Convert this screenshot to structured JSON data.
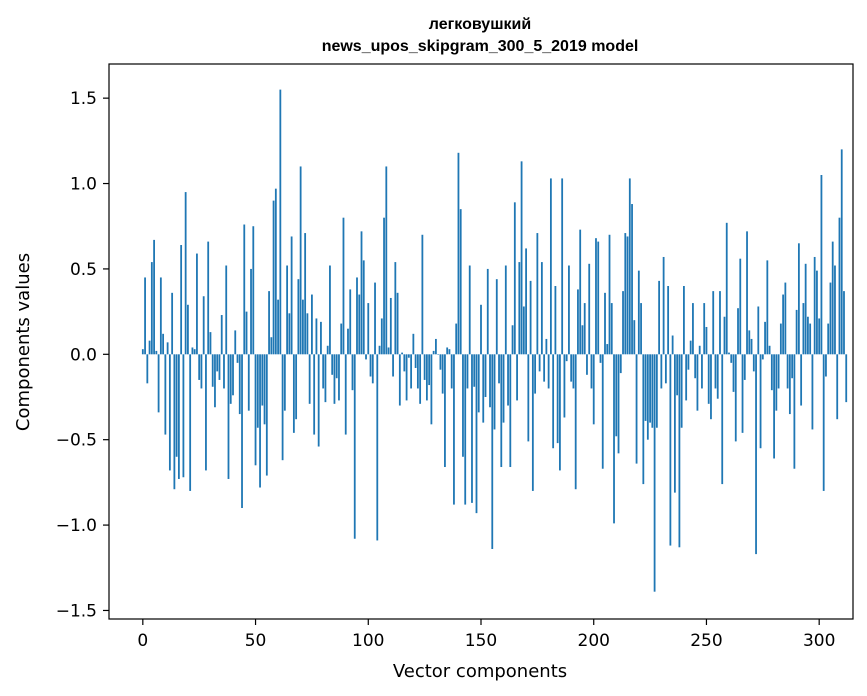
{
  "chart_data": {
    "type": "bar",
    "title_line1": "легковушкий",
    "title_line2": "news_upos_skipgram_300_5_2019 model",
    "xlabel": "Vector components",
    "ylabel": "Components values",
    "xlim": [
      -15,
      315
    ],
    "ylim": [
      -1.55,
      1.7
    ],
    "xticks": [
      0,
      50,
      100,
      150,
      200,
      250,
      300
    ],
    "yticks": [
      -1.5,
      -1.0,
      -0.5,
      0.0,
      0.5,
      1.0,
      1.5
    ],
    "xtick_labels": [
      "0",
      "50",
      "100",
      "150",
      "200",
      "250",
      "300"
    ],
    "ytick_labels": [
      "−1.5",
      "−1.0",
      "−0.5",
      "0.0",
      "0.5",
      "1.0",
      "1.5"
    ],
    "bar_color": "#1f77b4",
    "grid": false,
    "values": [
      0.03,
      0.45,
      -0.17,
      0.08,
      0.54,
      0.67,
      0.02,
      -0.34,
      0.45,
      0.12,
      -0.47,
      0.07,
      -0.68,
      0.36,
      -0.79,
      -0.6,
      -0.73,
      0.64,
      -0.72,
      0.95,
      0.29,
      -0.8,
      0.04,
      0.03,
      0.59,
      -0.15,
      -0.2,
      0.34,
      -0.68,
      0.66,
      0.13,
      -0.19,
      -0.31,
      -0.1,
      -0.15,
      0.23,
      -0.2,
      0.52,
      -0.73,
      -0.29,
      -0.24,
      0.14,
      -0.05,
      -0.35,
      -0.9,
      0.76,
      0.25,
      -0.33,
      0.5,
      0.75,
      -0.65,
      -0.43,
      -0.78,
      -0.3,
      -0.41,
      -0.71,
      0.37,
      0.1,
      0.9,
      0.97,
      0.32,
      1.55,
      -0.62,
      -0.33,
      0.52,
      0.24,
      0.69,
      -0.46,
      -0.38,
      0.44,
      1.1,
      0.32,
      0.71,
      0.24,
      -0.29,
      0.35,
      -0.47,
      0.21,
      -0.54,
      0.19,
      -0.2,
      -0.28,
      0.05,
      0.52,
      -0.12,
      -0.29,
      -0.14,
      -0.27,
      0.18,
      0.8,
      -0.47,
      0.15,
      0.38,
      -0.21,
      -1.08,
      0.45,
      0.35,
      0.72,
      0.55,
      -0.03,
      0.3,
      -0.13,
      -0.17,
      0.42,
      -1.09,
      0.05,
      0.21,
      0.8,
      1.1,
      0.04,
      0.33,
      -0.13,
      0.54,
      0.36,
      -0.3,
      0.01,
      -0.1,
      -0.27,
      -0.02,
      -0.2,
      0.12,
      -0.08,
      -0.2,
      -0.29,
      0.7,
      -0.15,
      -0.27,
      -0.18,
      -0.41,
      0.02,
      0.09,
      0.0,
      -0.09,
      -0.23,
      -0.66,
      0.04,
      0.03,
      -0.2,
      -0.88,
      0.18,
      1.18,
      0.85,
      -0.6,
      -0.88,
      -0.2,
      0.52,
      -0.87,
      -0.19,
      -0.93,
      -0.34,
      0.29,
      -0.4,
      -0.25,
      0.5,
      -0.31,
      -1.14,
      -0.44,
      0.44,
      -0.17,
      -0.66,
      -0.4,
      0.52,
      -0.3,
      -0.66,
      0.17,
      0.89,
      -0.27,
      0.54,
      1.13,
      0.28,
      0.62,
      -0.51,
      0.43,
      -0.8,
      -0.23,
      0.71,
      -0.1,
      0.54,
      -0.16,
      0.09,
      -0.2,
      1.03,
      -0.55,
      0.4,
      -0.52,
      -0.68,
      1.03,
      -0.37,
      -0.04,
      0.52,
      -0.16,
      -0.2,
      -0.79,
      0.38,
      0.73,
      0.17,
      0.3,
      -0.12,
      0.53,
      -0.2,
      -0.41,
      0.68,
      0.66,
      -0.05,
      -0.67,
      0.36,
      0.06,
      0.7,
      0.3,
      -0.99,
      -0.48,
      -0.58,
      -0.11,
      0.37,
      0.71,
      0.69,
      1.03,
      0.88,
      0.2,
      -0.64,
      0.49,
      0.3,
      -0.76,
      -0.39,
      -0.5,
      -0.4,
      -0.43,
      -1.39,
      -0.43,
      0.43,
      -0.2,
      0.57,
      -0.17,
      0.4,
      -1.12,
      0.11,
      -0.81,
      -0.24,
      -1.13,
      -0.43,
      0.4,
      -0.27,
      -0.09,
      0.08,
      0.3,
      -0.14,
      -0.33,
      0.05,
      -0.2,
      0.3,
      0.16,
      -0.29,
      -0.38,
      0.37,
      -0.2,
      -0.26,
      0.37,
      -0.76,
      0.22,
      0.77,
      0.01,
      -0.05,
      -0.22,
      -0.51,
      0.27,
      0.56,
      -0.46,
      -0.15,
      0.72,
      0.14,
      0.09,
      -0.1,
      -1.17,
      0.28,
      -0.55,
      -0.03,
      0.19,
      0.55,
      0.05,
      -0.21,
      -0.61,
      -0.33,
      -0.2,
      0.18,
      0.35,
      0.42,
      -0.2,
      -0.35,
      -0.14,
      -0.67,
      0.26,
      0.65,
      -0.3,
      0.3,
      0.53,
      0.22,
      0.18,
      -0.44,
      0.57,
      0.49,
      0.21,
      1.05,
      -0.8,
      -0.13,
      0.18,
      0.42,
      0.66,
      0.52,
      -0.38,
      0.8,
      1.2,
      0.37,
      -0.28
    ]
  }
}
